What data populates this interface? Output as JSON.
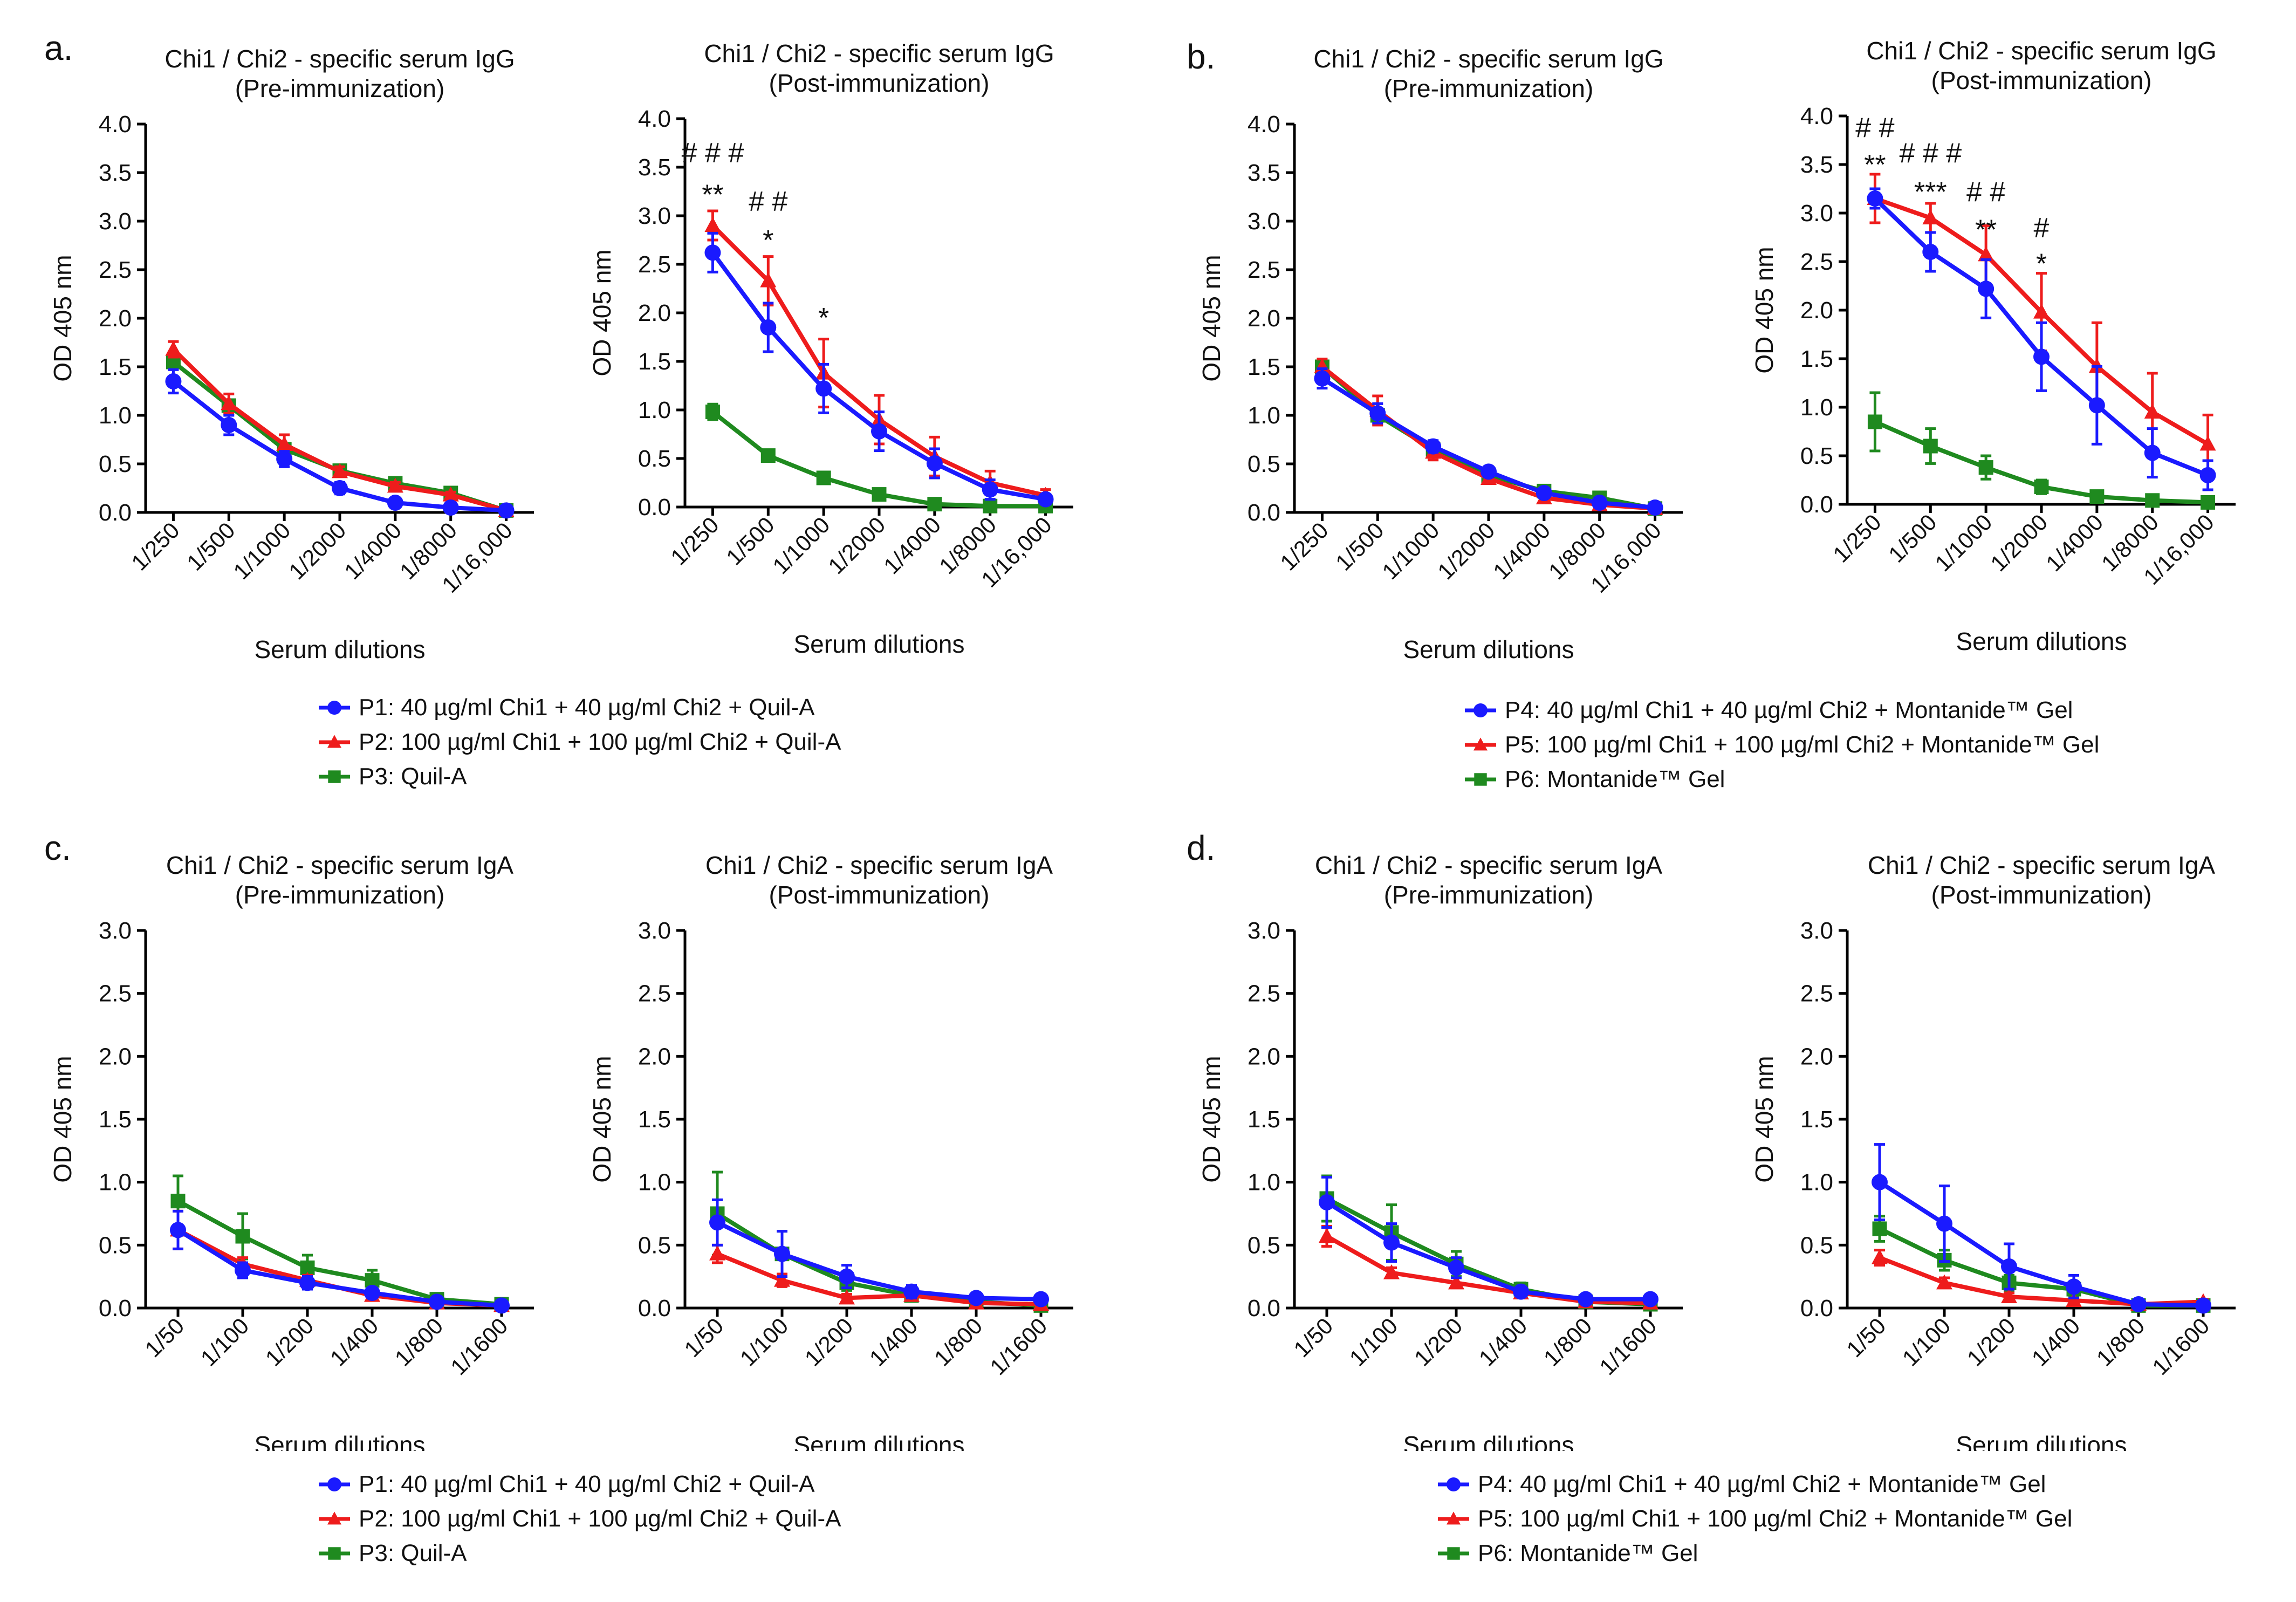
{
  "panels": [
    {
      "letter": "a."
    },
    {
      "letter": "b."
    },
    {
      "letter": "c."
    },
    {
      "letter": "d."
    }
  ],
  "legends": [
    {
      "items": [
        {
          "label": "P1: 40 µg/ml Chi1 + 40 µg/ml Chi2 + Quil-A",
          "color": "#1a1aff",
          "marker": "circle"
        },
        {
          "label": "P2: 100 µg/ml Chi1 + 100 µg/ml Chi2 + Quil-A",
          "color": "#ee1c1c",
          "marker": "triangle"
        },
        {
          "label": "P3: Quil-A",
          "color": "#1f8a1f",
          "marker": "square"
        }
      ]
    },
    {
      "items": [
        {
          "label": "P4: 40 µg/ml Chi1 + 40 µg/ml Chi2 + Montanide™ Gel",
          "color": "#1a1aff",
          "marker": "circle"
        },
        {
          "label": "P5: 100 µg/ml Chi1 + 100 µg/ml Chi2 + Montanide™ Gel",
          "color": "#ee1c1c",
          "marker": "triangle"
        },
        {
          "label": "P6: Montanide™ Gel",
          "color": "#1f8a1f",
          "marker": "square"
        }
      ]
    },
    {
      "items": [
        {
          "label": "P1: 40 µg/ml Chi1 + 40 µg/ml Chi2 + Quil-A",
          "color": "#1a1aff",
          "marker": "circle"
        },
        {
          "label": "P2: 100 µg/ml Chi1 + 100 µg/ml Chi2 + Quil-A",
          "color": "#ee1c1c",
          "marker": "triangle"
        },
        {
          "label": "P3: Quil-A",
          "color": "#1f8a1f",
          "marker": "square"
        }
      ]
    },
    {
      "items": [
        {
          "label": "P4: 40 µg/ml Chi1 + 40 µg/ml Chi2 + Montanide™ Gel",
          "color": "#1a1aff",
          "marker": "circle"
        },
        {
          "label": "P5: 100 µg/ml Chi1 + 100 µg/ml Chi2 + Montanide™ Gel",
          "color": "#ee1c1c",
          "marker": "triangle"
        },
        {
          "label": "P6: Montanide™ Gel",
          "color": "#1f8a1f",
          "marker": "square"
        }
      ]
    }
  ],
  "chart_data": [
    {
      "type": "line",
      "panel": "a.",
      "title": "Chi1 / Chi2 - specific serum IgG",
      "subtitle": "(Pre-immunization)",
      "xlabel": "Serum dilutions",
      "ylabel": "OD 405 nm",
      "ylim": [
        0,
        4
      ],
      "yticks": [
        "0.0",
        "0.5",
        "1.0",
        "1.5",
        "2.0",
        "2.5",
        "3.0",
        "3.5",
        "4.0"
      ],
      "categories": [
        "1/250",
        "1/500",
        "1/1000",
        "1/2000",
        "1/4000",
        "1/8000",
        "1/16,000"
      ],
      "series": [
        {
          "name": "P1",
          "color": "#1a1aff",
          "marker": "circle",
          "values": [
            1.35,
            0.9,
            0.55,
            0.25,
            0.1,
            0.05,
            0.02
          ],
          "errors": [
            0.12,
            0.1,
            0.08,
            0.06,
            0.03,
            0.02,
            0.01
          ]
        },
        {
          "name": "P2",
          "color": "#ee1c1c",
          "marker": "triangle",
          "values": [
            1.68,
            1.12,
            0.7,
            0.42,
            0.27,
            0.18,
            0.02
          ],
          "errors": [
            0.08,
            0.1,
            0.1,
            0.05,
            0.04,
            0.03,
            0.01
          ]
        },
        {
          "name": "P3",
          "color": "#1f8a1f",
          "marker": "square",
          "values": [
            1.55,
            1.1,
            0.65,
            0.43,
            0.3,
            0.2,
            0.02
          ],
          "errors": [
            0.05,
            0.06,
            0.05,
            0.04,
            0.03,
            0.02,
            0.01
          ]
        }
      ],
      "annotations": []
    },
    {
      "type": "line",
      "panel": "a.",
      "title": "Chi1 / Chi2 - specific serum IgG",
      "subtitle": "(Post-immunization)",
      "xlabel": "Serum dilutions",
      "ylabel": "OD 405 nm",
      "ylim": [
        0,
        4
      ],
      "yticks": [
        "0.0",
        "0.5",
        "1.0",
        "1.5",
        "2.0",
        "2.5",
        "3.0",
        "3.5",
        "4.0"
      ],
      "categories": [
        "1/250",
        "1/500",
        "1/1000",
        "1/2000",
        "1/4000",
        "1/8000",
        "1/16,000"
      ],
      "series": [
        {
          "name": "P1",
          "color": "#1a1aff",
          "marker": "circle",
          "values": [
            2.62,
            1.85,
            1.22,
            0.78,
            0.45,
            0.18,
            0.08
          ],
          "errors": [
            0.2,
            0.25,
            0.25,
            0.2,
            0.15,
            0.1,
            0.05
          ]
        },
        {
          "name": "P2",
          "color": "#ee1c1c",
          "marker": "triangle",
          "values": [
            2.9,
            2.33,
            1.38,
            0.9,
            0.52,
            0.25,
            0.12
          ],
          "errors": [
            0.15,
            0.25,
            0.35,
            0.25,
            0.2,
            0.12,
            0.06
          ]
        },
        {
          "name": "P3",
          "color": "#1f8a1f",
          "marker": "square",
          "values": [
            0.98,
            0.53,
            0.3,
            0.13,
            0.03,
            0.01,
            0.01
          ],
          "errors": [
            0.08,
            0.04,
            0.03,
            0.02,
            0.01,
            0.01,
            0.01
          ]
        }
      ],
      "annotations": [
        {
          "cat": 0,
          "value": 3.55,
          "text": "# # #"
        },
        {
          "cat": 0,
          "value": 3.12,
          "text": "**"
        },
        {
          "cat": 1,
          "value": 3.05,
          "text": "# #"
        },
        {
          "cat": 1,
          "value": 2.65,
          "text": "*"
        },
        {
          "cat": 2,
          "value": 1.85,
          "text": "*"
        }
      ]
    },
    {
      "type": "line",
      "panel": "b.",
      "title": "Chi1 / Chi2 - specific serum IgG",
      "subtitle": "(Pre-immunization)",
      "xlabel": "Serum dilutions",
      "ylabel": "OD 405 nm",
      "ylim": [
        0,
        4
      ],
      "yticks": [
        "0.0",
        "0.5",
        "1.0",
        "1.5",
        "2.0",
        "2.5",
        "3.0",
        "3.5",
        "4.0"
      ],
      "categories": [
        "1/250",
        "1/500",
        "1/1000",
        "1/2000",
        "1/4000",
        "1/8000",
        "1/16,000"
      ],
      "series": [
        {
          "name": "P4",
          "color": "#1a1aff",
          "marker": "circle",
          "values": [
            1.38,
            1.02,
            0.68,
            0.42,
            0.2,
            0.1,
            0.05
          ],
          "errors": [
            0.1,
            0.1,
            0.06,
            0.05,
            0.04,
            0.03,
            0.02
          ]
        },
        {
          "name": "P5",
          "color": "#ee1c1c",
          "marker": "triangle",
          "values": [
            1.5,
            1.05,
            0.62,
            0.35,
            0.15,
            0.08,
            0.04
          ],
          "errors": [
            0.08,
            0.15,
            0.08,
            0.05,
            0.04,
            0.03,
            0.02
          ]
        },
        {
          "name": "P6",
          "color": "#1f8a1f",
          "marker": "square",
          "values": [
            1.5,
            1.0,
            0.65,
            0.38,
            0.22,
            0.15,
            0.04
          ],
          "errors": [
            0.06,
            0.06,
            0.05,
            0.05,
            0.04,
            0.05,
            0.02
          ]
        }
      ],
      "annotations": []
    },
    {
      "type": "line",
      "panel": "b.",
      "title": "Chi1 / Chi2 - specific serum IgG",
      "subtitle": "(Post-immunization)",
      "xlabel": "Serum dilutions",
      "ylabel": "OD 405 nm",
      "ylim": [
        0,
        4
      ],
      "yticks": [
        "0.0",
        "0.5",
        "1.0",
        "1.5",
        "2.0",
        "2.5",
        "3.0",
        "3.5",
        "4.0"
      ],
      "categories": [
        "1/250",
        "1/500",
        "1/1000",
        "1/2000",
        "1/4000",
        "1/8000",
        "1/16,000"
      ],
      "series": [
        {
          "name": "P4",
          "color": "#1a1aff",
          "marker": "circle",
          "values": [
            3.15,
            2.6,
            2.22,
            1.52,
            1.02,
            0.53,
            0.3
          ],
          "errors": [
            0.1,
            0.2,
            0.3,
            0.35,
            0.4,
            0.25,
            0.15
          ]
        },
        {
          "name": "P5",
          "color": "#ee1c1c",
          "marker": "triangle",
          "values": [
            3.15,
            2.95,
            2.57,
            1.98,
            1.42,
            0.95,
            0.62
          ],
          "errors": [
            0.25,
            0.15,
            0.3,
            0.4,
            0.45,
            0.4,
            0.3
          ]
        },
        {
          "name": "P6",
          "color": "#1f8a1f",
          "marker": "square",
          "values": [
            0.85,
            0.6,
            0.38,
            0.18,
            0.08,
            0.04,
            0.02
          ],
          "errors": [
            0.3,
            0.18,
            0.12,
            0.07,
            0.04,
            0.02,
            0.01
          ]
        }
      ],
      "annotations": [
        {
          "cat": 0,
          "value": 3.78,
          "text": "# #"
        },
        {
          "cat": 0,
          "value": 3.4,
          "text": "**"
        },
        {
          "cat": 1,
          "value": 3.52,
          "text": "# # #"
        },
        {
          "cat": 1,
          "value": 3.12,
          "text": "***"
        },
        {
          "cat": 2,
          "value": 3.12,
          "text": "# #"
        },
        {
          "cat": 2,
          "value": 2.73,
          "text": "**"
        },
        {
          "cat": 3,
          "value": 2.75,
          "text": "#"
        },
        {
          "cat": 3,
          "value": 2.38,
          "text": "*"
        }
      ]
    },
    {
      "type": "line",
      "panel": "c.",
      "title": "Chi1 / Chi2 - specific serum IgA",
      "subtitle": "(Pre-immunization)",
      "xlabel": "Serum dilutions",
      "ylabel": "OD 405 nm",
      "ylim": [
        0,
        3
      ],
      "yticks": [
        "0.0",
        "0.5",
        "1.0",
        "1.5",
        "2.0",
        "2.5",
        "3.0"
      ],
      "categories": [
        "1/50",
        "1/100",
        "1/200",
        "1/400",
        "1/800",
        "1/1600"
      ],
      "series": [
        {
          "name": "P1",
          "color": "#1a1aff",
          "marker": "circle",
          "values": [
            0.62,
            0.3,
            0.2,
            0.12,
            0.05,
            0.02
          ],
          "errors": [
            0.15,
            0.06,
            0.05,
            0.04,
            0.02,
            0.01
          ]
        },
        {
          "name": "P2",
          "color": "#ee1c1c",
          "marker": "triangle",
          "values": [
            0.62,
            0.35,
            0.22,
            0.1,
            0.04,
            0.02
          ],
          "errors": [
            0.15,
            0.05,
            0.04,
            0.03,
            0.02,
            0.01
          ]
        },
        {
          "name": "P3",
          "color": "#1f8a1f",
          "marker": "square",
          "values": [
            0.85,
            0.57,
            0.32,
            0.22,
            0.07,
            0.03
          ],
          "errors": [
            0.2,
            0.18,
            0.1,
            0.08,
            0.03,
            0.02
          ]
        }
      ],
      "annotations": []
    },
    {
      "type": "line",
      "panel": "c.",
      "title": "Chi1 / Chi2 - specific serum IgA",
      "subtitle": "(Post-immunization)",
      "xlabel": "Serum dilutions",
      "ylabel": "OD 405 nm",
      "ylim": [
        0,
        3
      ],
      "yticks": [
        "0.0",
        "0.5",
        "1.0",
        "1.5",
        "2.0",
        "2.5",
        "3.0"
      ],
      "categories": [
        "1/50",
        "1/100",
        "1/200",
        "1/400",
        "1/800",
        "1/1600"
      ],
      "series": [
        {
          "name": "P1",
          "color": "#1a1aff",
          "marker": "circle",
          "values": [
            0.68,
            0.43,
            0.25,
            0.13,
            0.08,
            0.07
          ],
          "errors": [
            0.18,
            0.18,
            0.09,
            0.05,
            0.03,
            0.02
          ]
        },
        {
          "name": "P2",
          "color": "#ee1c1c",
          "marker": "triangle",
          "values": [
            0.43,
            0.22,
            0.08,
            0.1,
            0.04,
            0.03
          ],
          "errors": [
            0.07,
            0.05,
            0.03,
            0.03,
            0.02,
            0.02
          ]
        },
        {
          "name": "P3",
          "color": "#1f8a1f",
          "marker": "square",
          "values": [
            0.75,
            0.43,
            0.2,
            0.1,
            0.05,
            0.02
          ],
          "errors": [
            0.33,
            0.18,
            0.06,
            0.04,
            0.03,
            0.02
          ]
        }
      ],
      "annotations": []
    },
    {
      "type": "line",
      "panel": "d.",
      "title": "Chi1 / Chi2 - specific serum IgA",
      "subtitle": "(Pre-immunization)",
      "xlabel": "Serum dilutions",
      "ylabel": "OD 405 nm",
      "ylim": [
        0,
        3
      ],
      "yticks": [
        "0.0",
        "0.5",
        "1.0",
        "1.5",
        "2.0",
        "2.5",
        "3.0"
      ],
      "categories": [
        "1/50",
        "1/100",
        "1/200",
        "1/400",
        "1/800",
        "1/1600"
      ],
      "series": [
        {
          "name": "P4",
          "color": "#1a1aff",
          "marker": "circle",
          "values": [
            0.84,
            0.52,
            0.32,
            0.13,
            0.07,
            0.07
          ],
          "errors": [
            0.2,
            0.15,
            0.08,
            0.04,
            0.02,
            0.02
          ]
        },
        {
          "name": "P5",
          "color": "#ee1c1c",
          "marker": "triangle",
          "values": [
            0.57,
            0.28,
            0.2,
            0.12,
            0.05,
            0.04
          ],
          "errors": [
            0.08,
            0.04,
            0.04,
            0.03,
            0.02,
            0.02
          ]
        },
        {
          "name": "P6",
          "color": "#1f8a1f",
          "marker": "square",
          "values": [
            0.87,
            0.6,
            0.35,
            0.15,
            0.05,
            0.03
          ],
          "errors": [
            0.18,
            0.22,
            0.1,
            0.05,
            0.03,
            0.02
          ]
        }
      ],
      "annotations": []
    },
    {
      "type": "line",
      "panel": "d.",
      "title": "Chi1 / Chi2 - specific serum IgA",
      "subtitle": "(Post-immunization)",
      "xlabel": "Serum dilutions",
      "ylabel": "OD 405 nm",
      "ylim": [
        0,
        3
      ],
      "yticks": [
        "0.0",
        "0.5",
        "1.0",
        "1.5",
        "2.0",
        "2.5",
        "3.0"
      ],
      "categories": [
        "1/50",
        "1/100",
        "1/200",
        "1/400",
        "1/800",
        "1/1600"
      ],
      "series": [
        {
          "name": "P4",
          "color": "#1a1aff",
          "marker": "circle",
          "values": [
            1.0,
            0.67,
            0.33,
            0.17,
            0.03,
            0.02
          ],
          "errors": [
            0.3,
            0.3,
            0.18,
            0.09,
            0.02,
            0.01
          ]
        },
        {
          "name": "P5",
          "color": "#ee1c1c",
          "marker": "triangle",
          "values": [
            0.4,
            0.2,
            0.09,
            0.06,
            0.03,
            0.05
          ],
          "errors": [
            0.06,
            0.04,
            0.03,
            0.02,
            0.02,
            0.02
          ]
        },
        {
          "name": "P6",
          "color": "#1f8a1f",
          "marker": "square",
          "values": [
            0.63,
            0.38,
            0.2,
            0.15,
            0.02,
            0.02
          ],
          "errors": [
            0.1,
            0.08,
            0.06,
            0.05,
            0.02,
            0.01
          ]
        }
      ],
      "annotations": []
    }
  ]
}
